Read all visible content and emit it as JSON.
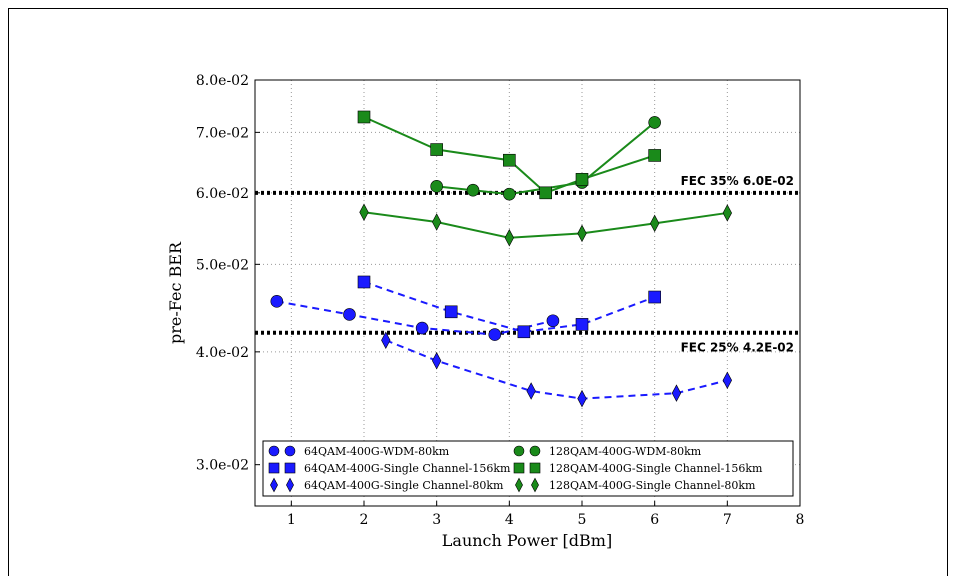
{
  "chart_data": {
    "type": "line",
    "title": "",
    "xlabel": "Launch Power [dBm]",
    "ylabel": "pre-Fec BER",
    "xlim": [
      0.5,
      8
    ],
    "ylim": [
      0.027,
      0.08
    ],
    "yscale": "log",
    "x_ticks": [
      1,
      2,
      3,
      4,
      5,
      6,
      7,
      8
    ],
    "x_tick_labels": [
      "1",
      "2",
      "3",
      "4",
      "5",
      "6",
      "7",
      "8"
    ],
    "y_ticks": [
      0.03,
      0.04,
      0.05,
      0.06,
      0.07,
      0.08
    ],
    "y_tick_labels": [
      "3.0e-02",
      "4.0e-02",
      "5.0e-02",
      "6.0e-02",
      "7.0e-02",
      "8.0e-02"
    ],
    "grid": true,
    "legend_position": "bottom",
    "reference_lines": [
      {
        "y": 0.06,
        "label": "FEC 35% 6.0E-02"
      },
      {
        "y": 0.042,
        "label": "FEC 25% 4.2E-02"
      }
    ],
    "series": [
      {
        "name": "64QAM-400G-WDM-80km",
        "color": "#1a1aff",
        "marker": "circle",
        "dashed": true,
        "x": [
          0.8,
          1.8,
          2.8,
          3.8,
          4.6
        ],
        "y": [
          0.0455,
          0.044,
          0.0425,
          0.0418,
          0.0433
        ]
      },
      {
        "name": "64QAM-400G-Single Channel-156km",
        "color": "#1a1aff",
        "marker": "square",
        "dashed": true,
        "x": [
          2.0,
          3.2,
          4.2,
          5.0,
          6.0
        ],
        "y": [
          0.0478,
          0.0443,
          0.0421,
          0.0429,
          0.046
        ]
      },
      {
        "name": "64QAM-400G-Single Channel-80km",
        "color": "#1a1aff",
        "marker": "diamond",
        "dashed": true,
        "x": [
          2.3,
          3.0,
          4.3,
          5.0,
          6.3,
          7.0
        ],
        "y": [
          0.0412,
          0.0391,
          0.0362,
          0.0355,
          0.036,
          0.0372
        ]
      },
      {
        "name": "128QAM-400G-WDM-80km",
        "color": "#1a8a1a",
        "marker": "circle",
        "dashed": false,
        "x": [
          3.0,
          3.5,
          4.0,
          5.0,
          6.0
        ],
        "y": [
          0.061,
          0.0604,
          0.0598,
          0.0616,
          0.0718
        ]
      },
      {
        "name": "128QAM-400G-Single Channel-156km",
        "color": "#1a8a1a",
        "marker": "square",
        "dashed": false,
        "x": [
          2.0,
          3.0,
          4.0,
          4.5,
          5.0,
          6.0
        ],
        "y": [
          0.0728,
          0.067,
          0.0652,
          0.06,
          0.0621,
          0.066
        ]
      },
      {
        "name": "128QAM-400G-Single Channel-80km",
        "color": "#1a8a1a",
        "marker": "diamond",
        "dashed": false,
        "x": [
          2.0,
          3.0,
          4.0,
          5.0,
          6.0,
          7.0
        ],
        "y": [
          0.0571,
          0.0557,
          0.0535,
          0.0541,
          0.0555,
          0.057
        ]
      }
    ]
  }
}
